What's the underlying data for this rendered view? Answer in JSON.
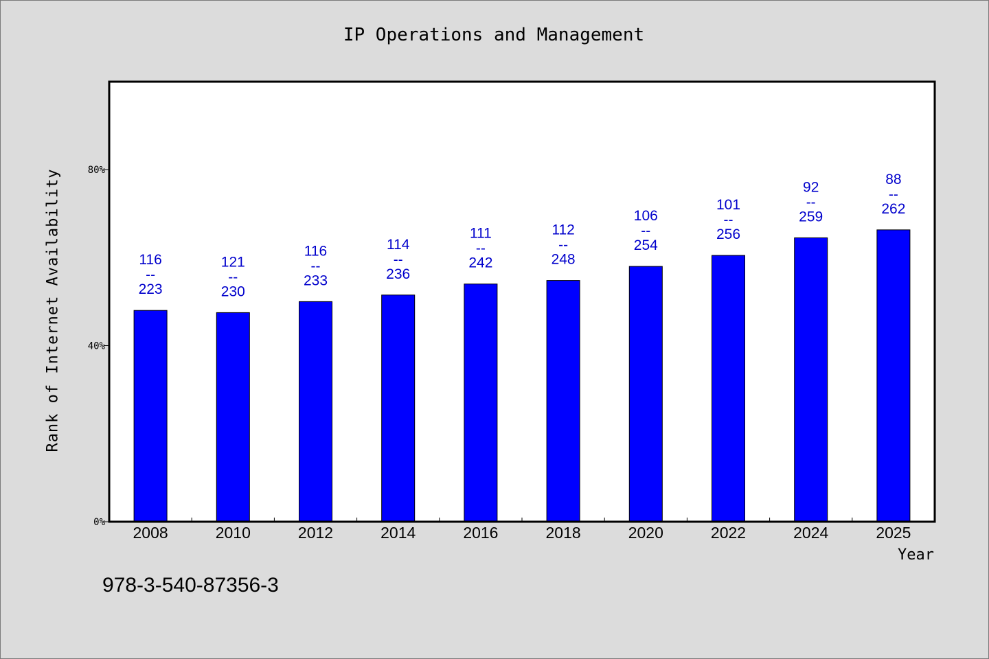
{
  "title": "IP Operations and Management",
  "footnote": "978-3-540-87356-3",
  "chart_data": {
    "type": "bar",
    "title": "IP Operations and Management",
    "xlabel": "Year",
    "ylabel": "Rank of Internet Availability",
    "ylim": [
      0,
      100
    ],
    "yticks": [
      0,
      40,
      80
    ],
    "ytick_labels": [
      "0%",
      "40%",
      "80%"
    ],
    "grid": false,
    "bar_color": "#0000ff",
    "label_color": "#0000cc",
    "label_separator": "--",
    "categories": [
      "2008",
      "2010",
      "2012",
      "2014",
      "2016",
      "2018",
      "2020",
      "2022",
      "2024",
      "2025"
    ],
    "values": [
      48.0,
      47.5,
      50.0,
      51.5,
      54.0,
      54.8,
      58.0,
      60.5,
      64.5,
      66.3
    ],
    "rank_labels": [
      "116",
      "121",
      "116",
      "114",
      "111",
      "112",
      "106",
      "101",
      "92",
      "88"
    ],
    "total_labels": [
      "223",
      "230",
      "233",
      "236",
      "242",
      "248",
      "254",
      "256",
      "259",
      "262"
    ]
  }
}
